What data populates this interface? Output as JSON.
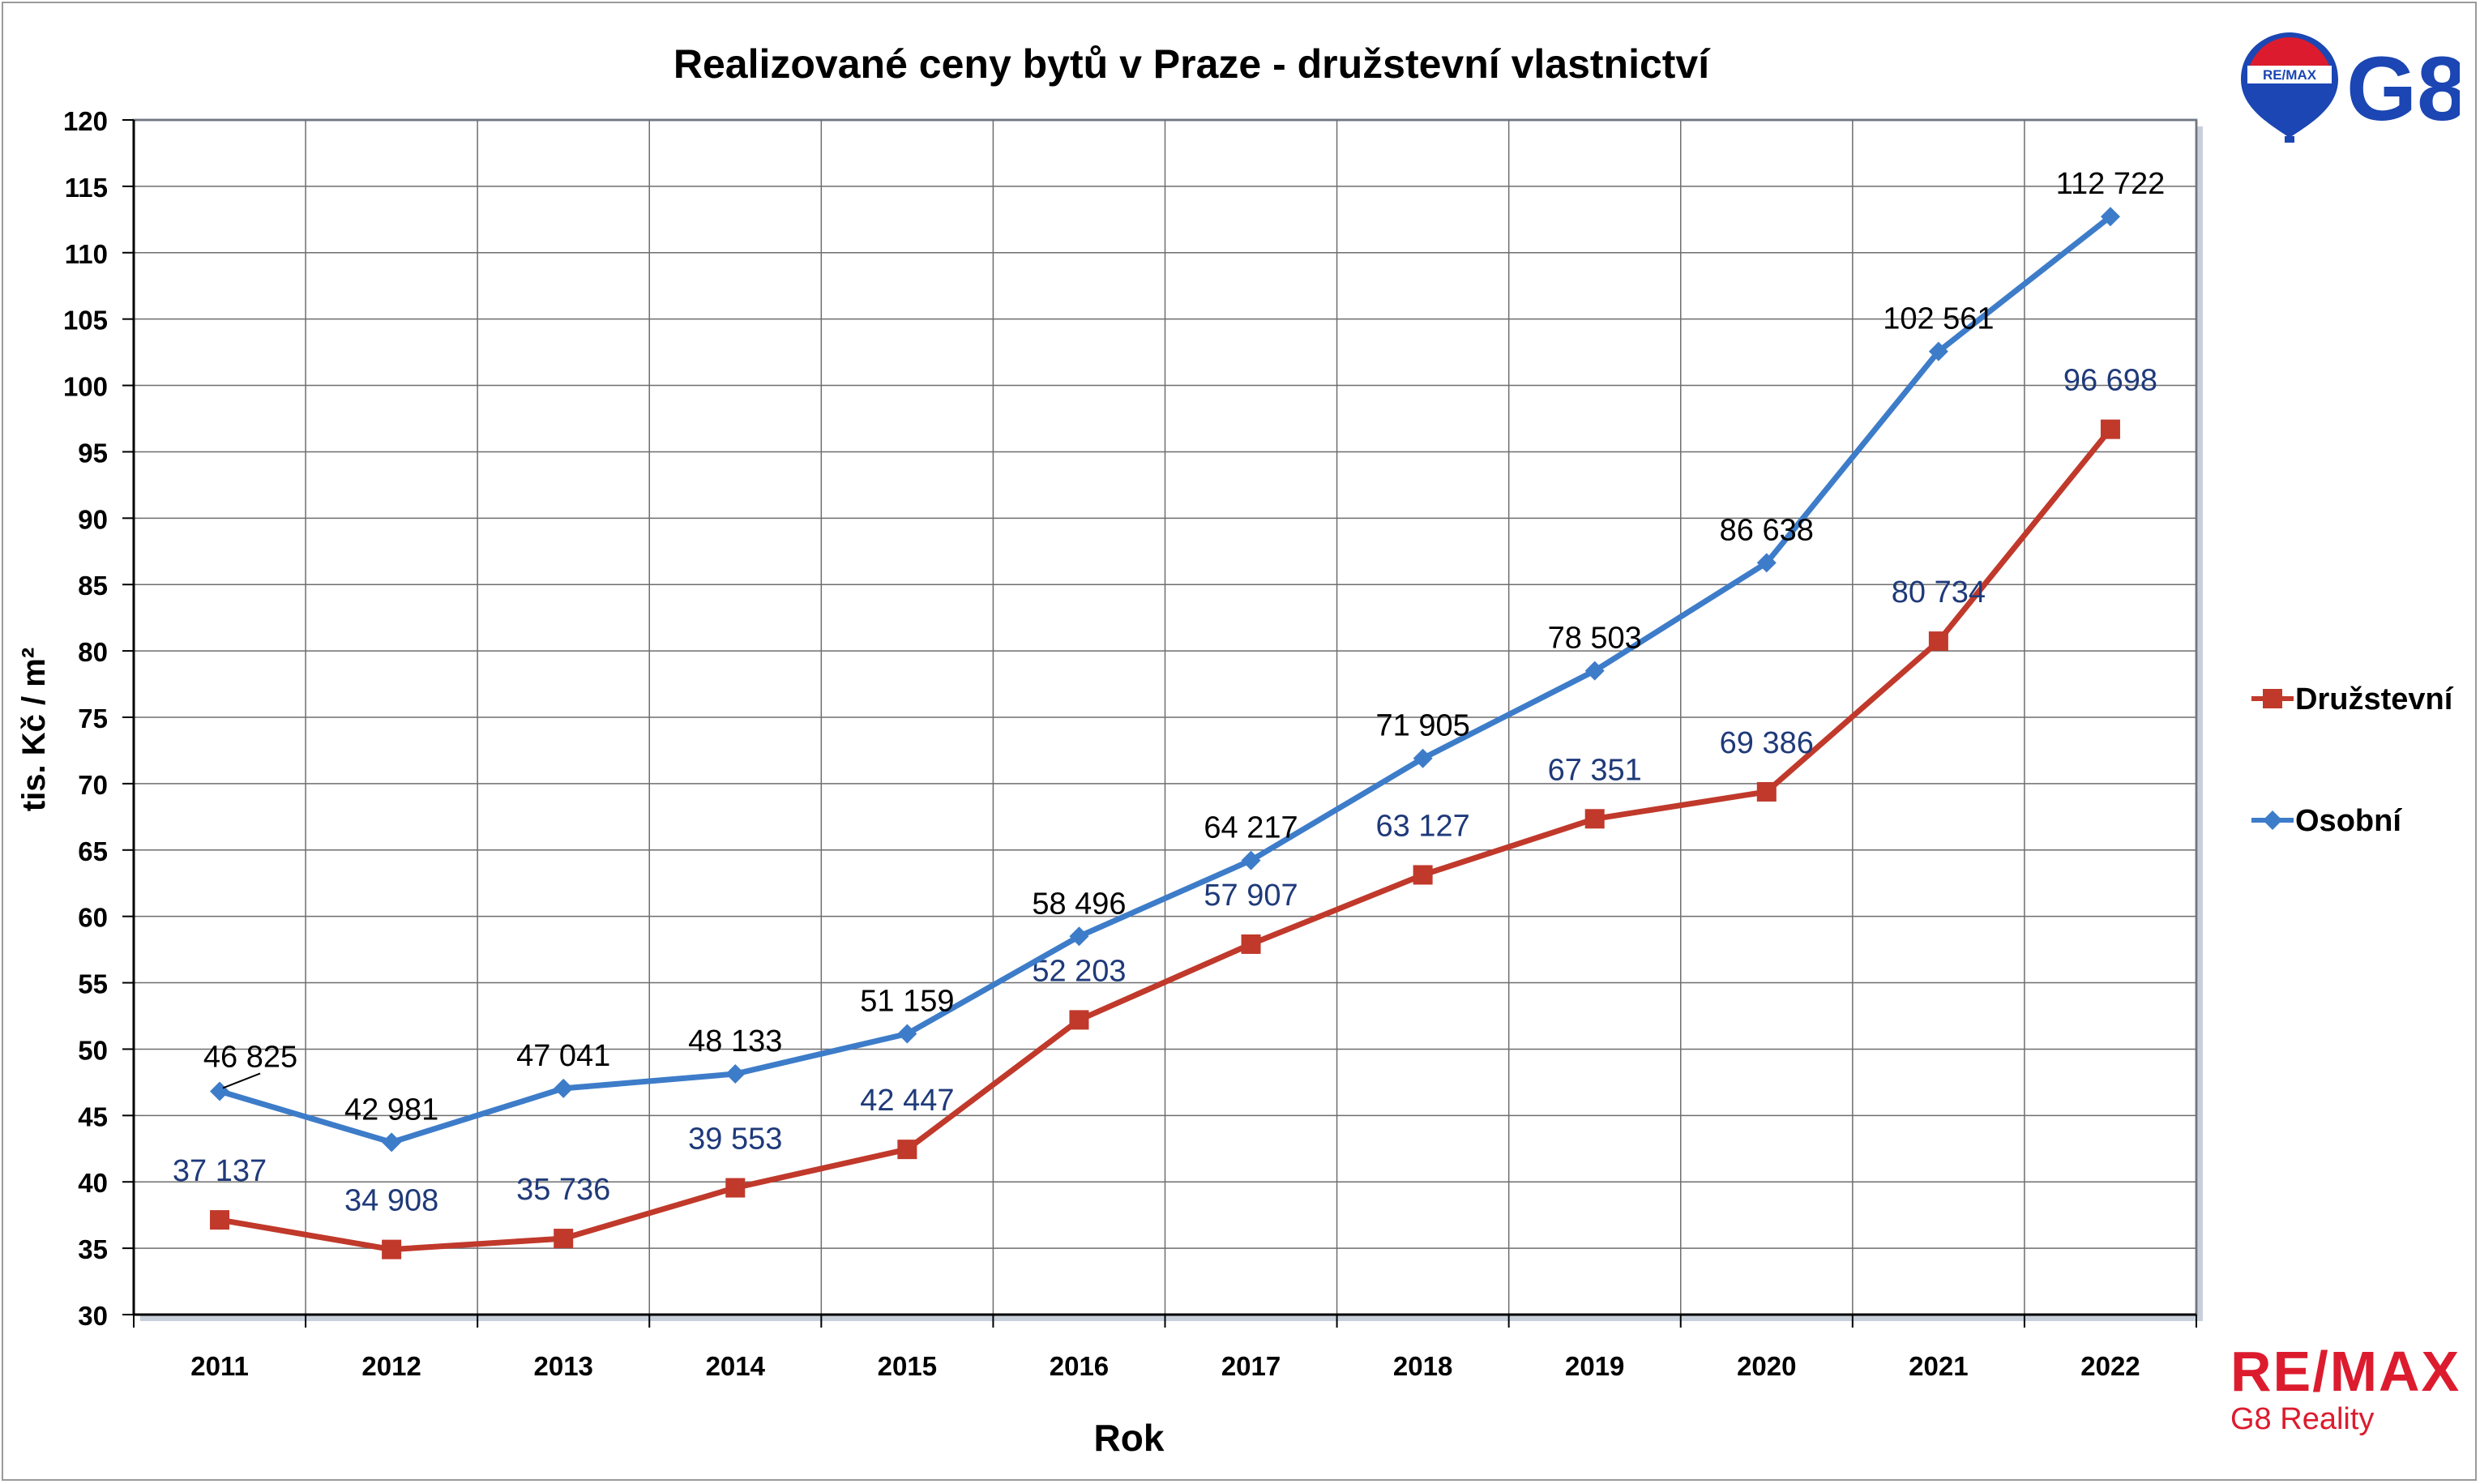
{
  "chart_data": {
    "type": "line",
    "title": "Realizované ceny bytů v Praze - družstevní vlastnictví",
    "xlabel": "Rok",
    "ylabel": "tis. Kč / m²",
    "x": [
      "2011",
      "2012",
      "2013",
      "2014",
      "2015",
      "2016",
      "2017",
      "2018",
      "2019",
      "2020",
      "2021",
      "2022"
    ],
    "ylim": [
      30,
      120
    ],
    "yticks": [
      "30",
      "35",
      "40",
      "45",
      "50",
      "55",
      "60",
      "65",
      "70",
      "75",
      "80",
      "85",
      "90",
      "95",
      "100",
      "105",
      "110",
      "115",
      "120"
    ],
    "grid": true,
    "legend_position": "right",
    "series": [
      {
        "name": "Družstevní",
        "color": "#c0392b",
        "marker": "square",
        "values": [
          37.137,
          34.908,
          35.736,
          39.553,
          42.447,
          52.203,
          57.907,
          63.127,
          67.351,
          69.386,
          80.734,
          96.698
        ],
        "labels": [
          "37 137",
          "34 908",
          "35 736",
          "39 553",
          "42 447",
          "52 203",
          "57 907",
          "63 127",
          "67 351",
          "69 386",
          "80 734",
          "96 698"
        ],
        "label_color": "#1f3a7a"
      },
      {
        "name": "Osobní",
        "color": "#3d7cc9",
        "marker": "diamond",
        "values": [
          46.825,
          42.981,
          47.041,
          48.133,
          51.159,
          58.496,
          64.217,
          71.905,
          78.503,
          86.638,
          102.561,
          112.722
        ],
        "labels": [
          "46 825",
          "42 981",
          "47 041",
          "48 133",
          "51 159",
          "58 496",
          "64 217",
          "71 905",
          "78 503",
          "86 638",
          "102 561",
          "112 722"
        ],
        "label_color": "#000000"
      }
    ]
  },
  "logos": {
    "top_right": "G8",
    "top_right_balloon": "RE/MAX",
    "bottom_right_brand": "RE/MAX",
    "bottom_right_sub": "G8 Reality"
  }
}
